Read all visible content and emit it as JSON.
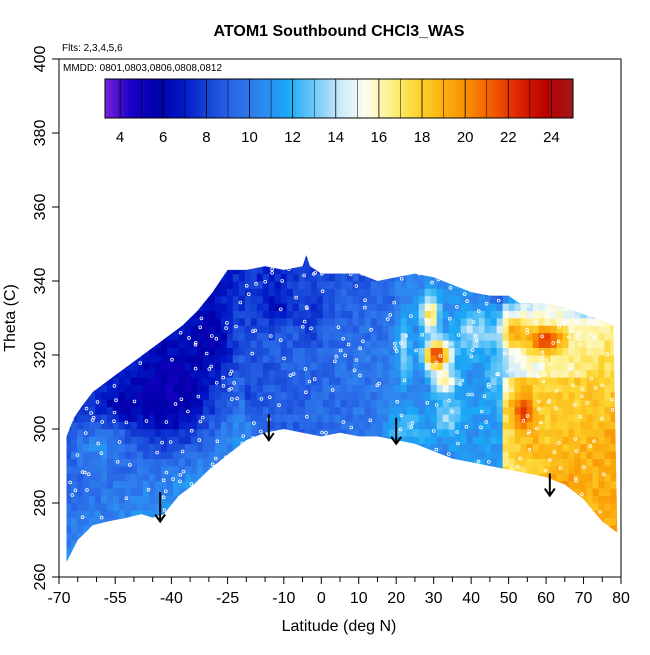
{
  "chart_data": {
    "type": "heatmap",
    "title": "ATOM1 Southbound CHCl3_WAS",
    "subtitle_lines": [
      "Flts: 2,3,4,5,6",
      "MMDD: 0801,0803,0806,0808,0812"
    ],
    "xlabel": "Latitude (deg N)",
    "ylabel": "Theta (C)",
    "xlim": [
      -70,
      80
    ],
    "ylim": [
      260,
      400
    ],
    "x_ticks": [
      -70,
      -55,
      -40,
      -25,
      -10,
      0,
      10,
      20,
      30,
      40,
      50,
      60,
      70,
      80
    ],
    "x_minor_ticks": [
      -65,
      -60,
      -50,
      -45,
      -35,
      -30,
      -20,
      -15,
      -5,
      5,
      15,
      25,
      35,
      45,
      55,
      65,
      75
    ],
    "y_ticks": [
      260,
      280,
      300,
      320,
      340,
      360,
      380,
      400
    ],
    "colorbar": {
      "ticks": [
        4,
        6,
        8,
        10,
        12,
        14,
        16,
        18,
        20,
        22,
        24
      ],
      "range": [
        3.3,
        25
      ],
      "palette": [
        "#7b22d8",
        "#1a00c8",
        "#0000a8",
        "#0018c8",
        "#1848d8",
        "#2a6ae8",
        "#2f86ef",
        "#1aa8f5",
        "#6ac8f8",
        "#c8e8fb",
        "#fdfdf0",
        "#fdf08a",
        "#fdd530",
        "#fcb010",
        "#f88a00",
        "#ef5600",
        "#dd2000",
        "#b80000",
        "#a01818"
      ]
    },
    "envelope_top": [
      [
        -68,
        298
      ],
      [
        -66,
        303
      ],
      [
        -64,
        306
      ],
      [
        -61,
        310
      ],
      [
        -57,
        313
      ],
      [
        -53,
        316
      ],
      [
        -49,
        319
      ],
      [
        -45,
        322
      ],
      [
        -41,
        325
      ],
      [
        -37,
        328
      ],
      [
        -33,
        332
      ],
      [
        -29,
        337
      ],
      [
        -27,
        340
      ],
      [
        -25,
        343
      ],
      [
        -20,
        343
      ],
      [
        -15,
        344
      ],
      [
        -10,
        343
      ],
      [
        -5,
        344
      ],
      [
        -4,
        347
      ],
      [
        -3,
        344
      ],
      [
        0,
        342
      ],
      [
        5,
        342
      ],
      [
        10,
        342
      ],
      [
        15,
        340
      ],
      [
        20,
        341
      ],
      [
        25,
        342
      ],
      [
        30,
        341
      ],
      [
        35,
        339
      ],
      [
        40,
        337
      ],
      [
        45,
        336
      ],
      [
        50,
        336
      ],
      [
        53,
        334
      ],
      [
        56,
        334
      ],
      [
        60,
        334
      ],
      [
        65,
        333
      ],
      [
        70,
        331
      ],
      [
        73,
        330
      ],
      [
        76,
        329
      ],
      [
        78,
        328
      ]
    ],
    "envelope_bottom": [
      [
        -68,
        264
      ],
      [
        -65,
        270
      ],
      [
        -61,
        274
      ],
      [
        -57,
        275
      ],
      [
        -52,
        276
      ],
      [
        -48,
        277
      ],
      [
        -45,
        276
      ],
      [
        -42,
        277
      ],
      [
        -38,
        282
      ],
      [
        -34,
        285
      ],
      [
        -30,
        289
      ],
      [
        -25,
        293
      ],
      [
        -20,
        297
      ],
      [
        -15,
        299
      ],
      [
        -10,
        300
      ],
      [
        -5,
        299
      ],
      [
        0,
        298
      ],
      [
        5,
        299
      ],
      [
        10,
        298
      ],
      [
        15,
        298
      ],
      [
        20,
        297
      ],
      [
        25,
        296
      ],
      [
        30,
        294
      ],
      [
        35,
        292
      ],
      [
        40,
        291
      ],
      [
        45,
        290
      ],
      [
        50,
        289
      ],
      [
        55,
        288
      ],
      [
        60,
        287
      ],
      [
        65,
        285
      ],
      [
        70,
        281
      ],
      [
        75,
        275
      ],
      [
        79,
        272
      ]
    ],
    "hotspots": [
      {
        "lat": 31,
        "theta": 320,
        "value": 22.5,
        "rlat": 3.5,
        "rth": 4
      },
      {
        "lat": 29,
        "theta": 331,
        "value": 17.5,
        "rlat": 2.5,
        "rth": 5
      },
      {
        "lat": 33,
        "theta": 313,
        "value": 17,
        "rlat": 3,
        "rth": 3
      },
      {
        "lat": 34,
        "theta": 304,
        "value": 13.5,
        "rlat": 4,
        "rth": 6
      },
      {
        "lat": 41,
        "theta": 326,
        "value": 14,
        "rlat": 5,
        "rth": 5
      },
      {
        "lat": 47,
        "theta": 315,
        "value": 13,
        "rlat": 3,
        "rth": 6
      },
      {
        "lat": 52,
        "theta": 326,
        "value": 19.5,
        "rlat": 4,
        "rth": 4
      },
      {
        "lat": 60,
        "theta": 324,
        "value": 22.5,
        "rlat": 5,
        "rth": 4
      },
      {
        "lat": 54,
        "theta": 305,
        "value": 23,
        "rlat": 3,
        "rth": 5
      },
      {
        "lat": 56,
        "theta": 296,
        "value": 19,
        "rlat": 3,
        "rth": 4
      },
      {
        "lat": 65,
        "theta": 305,
        "value": 18,
        "rlat": 9,
        "rth": 12
      },
      {
        "lat": 70,
        "theta": 290,
        "value": 19,
        "rlat": 8,
        "rth": 8
      },
      {
        "lat": 66,
        "theta": 284,
        "value": 19.5,
        "rlat": 6,
        "rth": 6
      },
      {
        "lat": 75,
        "theta": 315,
        "value": 17.5,
        "rlat": 5,
        "rth": 10
      },
      {
        "lat": 48,
        "theta": 337,
        "value": 8,
        "rlat": 5,
        "rth": 3
      },
      {
        "lat": 73,
        "theta": 334,
        "value": 9,
        "rlat": 5,
        "rth": 3
      },
      {
        "lat": 22,
        "theta": 322,
        "value": 13.5,
        "rlat": 2,
        "rth": 10
      },
      {
        "lat": 23,
        "theta": 300,
        "value": 12.5,
        "rlat": 6,
        "rth": 5
      },
      {
        "lat": -40,
        "theta": 310,
        "value": 5,
        "rlat": 12,
        "rth": 14
      },
      {
        "lat": -50,
        "theta": 307,
        "value": 5.5,
        "rlat": 8,
        "rth": 5
      },
      {
        "lat": -30,
        "theta": 325,
        "value": 5.5,
        "rlat": 6,
        "rth": 10
      },
      {
        "lat": -12,
        "theta": 335,
        "value": 6.5,
        "rlat": 4,
        "rth": 5
      },
      {
        "lat": -3,
        "theta": 332,
        "value": 7.5,
        "rlat": 3,
        "rth": 8
      },
      {
        "lat": -20,
        "theta": 300,
        "value": 10.5,
        "rlat": 6,
        "rth": 4
      },
      {
        "lat": -60,
        "theta": 295,
        "value": 10.5,
        "rlat": 8,
        "rth": 6
      }
    ],
    "arrows": [
      {
        "lat": -43,
        "theta_top": 283,
        "theta_tip": 275
      },
      {
        "lat": -14,
        "theta_top": 304,
        "theta_tip": 297
      },
      {
        "lat": 20,
        "theta_top": 303,
        "theta_tip": 296
      },
      {
        "lat": 61,
        "theta_top": 288,
        "theta_tip": 282
      }
    ]
  }
}
